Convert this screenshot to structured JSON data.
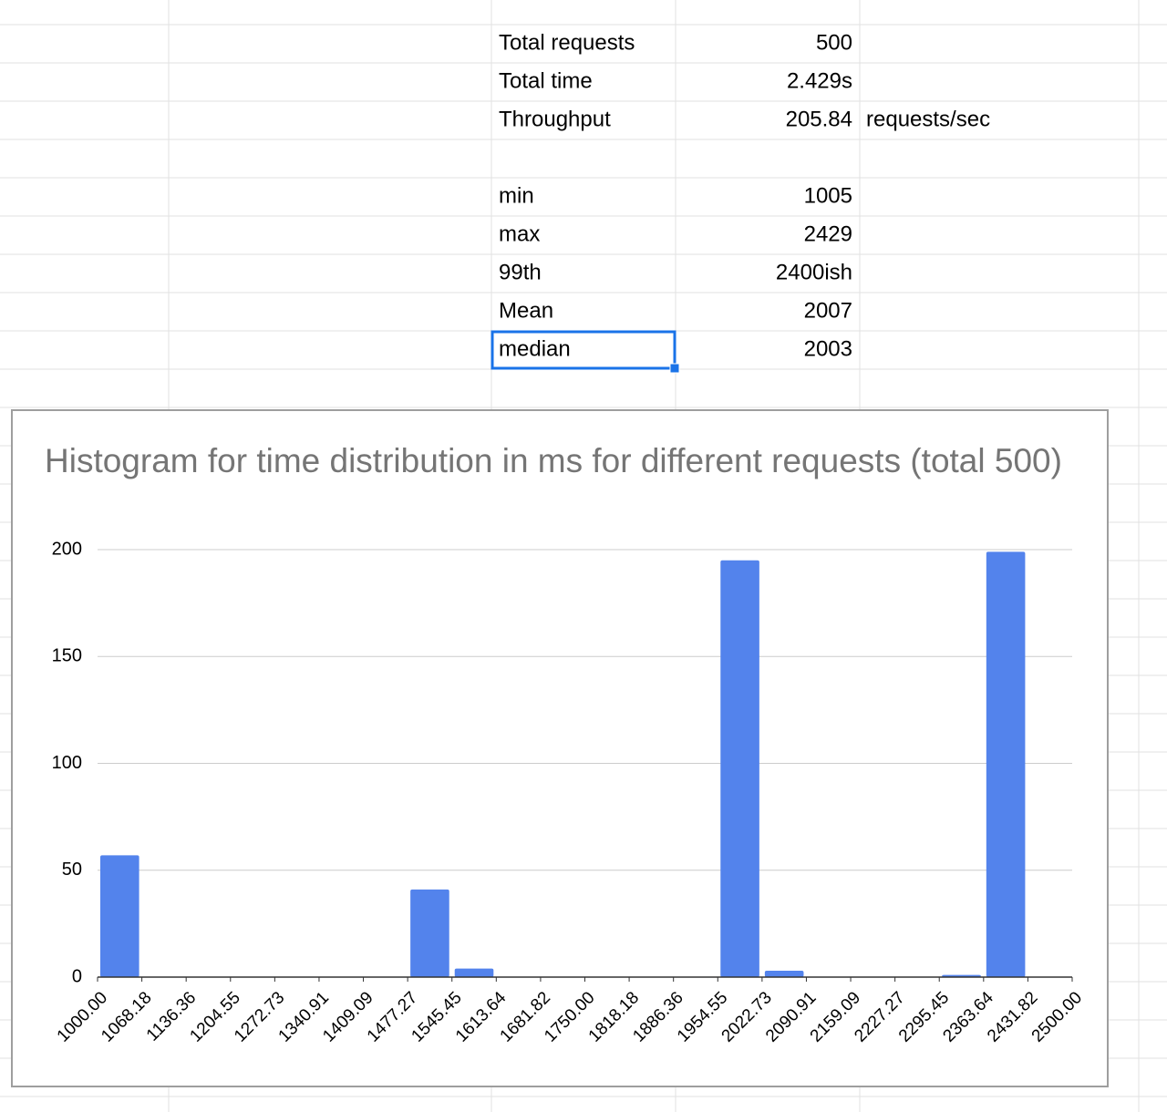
{
  "sheet": {
    "summary": [
      {
        "label": "Total requests",
        "value": "500"
      },
      {
        "label": "Total time",
        "value": "2.429s"
      },
      {
        "label": "Throughput",
        "value": "205.84",
        "unit": "requests/sec"
      }
    ],
    "stats": [
      {
        "label": "min",
        "value": "1005"
      },
      {
        "label": "max",
        "value": "2429"
      },
      {
        "label": "99th",
        "value": "2400ish"
      },
      {
        "label": "Mean",
        "value": "2007"
      },
      {
        "label": "median",
        "value": "2003"
      }
    ]
  },
  "chart_data": {
    "type": "histogram",
    "title": "Histogram for time distribution in ms for different requests (total 500)",
    "bins": [
      1000,
      1068.18,
      1136.36,
      1204.55,
      1272.73,
      1340.91,
      1409.09,
      1477.27,
      1545.45,
      1613.64,
      1681.82,
      1750,
      1818.18,
      1886.36,
      1954.55,
      2022.73,
      2090.91,
      2159.09,
      2227.27,
      2295.45,
      2363.64,
      2431.82,
      2500
    ],
    "values": [
      57,
      0,
      0,
      0,
      0,
      0,
      0,
      41,
      4,
      0,
      0,
      0,
      0,
      0,
      195,
      3,
      0,
      0,
      0,
      1,
      199,
      0
    ],
    "color": "#5383ec",
    "xlim": [
      1000,
      2500
    ],
    "xticks": [
      {
        "value": 1000,
        "label": "1000.00"
      },
      {
        "value": 1068.18,
        "label": "1068.18"
      },
      {
        "value": 1136.36,
        "label": "1136.36"
      },
      {
        "value": 1204.55,
        "label": "1204.55"
      },
      {
        "value": 1272.73,
        "label": "1272.73"
      },
      {
        "value": 1340.91,
        "label": "1340.91"
      },
      {
        "value": 1409.09,
        "label": "1409.09"
      },
      {
        "value": 1477.27,
        "label": "1477.27"
      },
      {
        "value": 1545.45,
        "label": "1545.45"
      },
      {
        "value": 1613.64,
        "label": "1613.64"
      },
      {
        "value": 1681.82,
        "label": "1681.82"
      },
      {
        "value": 1750,
        "label": "1750.00"
      },
      {
        "value": 1818.18,
        "label": "1818.18"
      },
      {
        "value": 1886.36,
        "label": "1886.36"
      },
      {
        "value": 1954.55,
        "label": "1954.55"
      },
      {
        "value": 2022.73,
        "label": "2022.73"
      },
      {
        "value": 2090.91,
        "label": "2090.91"
      },
      {
        "value": 2159.09,
        "label": "2159.09"
      },
      {
        "value": 2227.27,
        "label": "2227.27"
      },
      {
        "value": 2295.45,
        "label": "2295.45"
      },
      {
        "value": 2363.64,
        "label": "2363.64"
      },
      {
        "value": 2431.82,
        "label": "2431.82"
      },
      {
        "value": 2500,
        "label": "2500.00"
      }
    ],
    "ylim": [
      0,
      200
    ],
    "yticks": [
      0,
      50,
      100,
      150,
      200
    ],
    "grid": true
  }
}
